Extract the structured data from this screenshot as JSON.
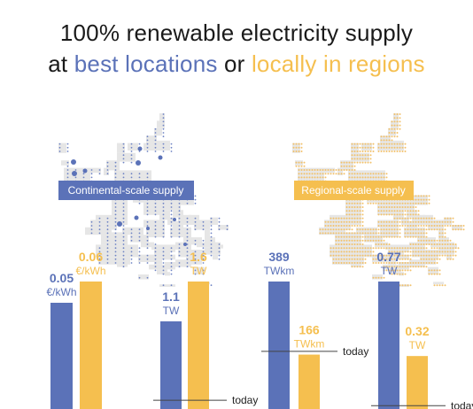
{
  "title": {
    "line1": "100% renewable electricity supply",
    "line2_prefix": "at ",
    "line2_blue": "best locations",
    "line2_middle": " or ",
    "line2_yellow": "locally in regions"
  },
  "maps": {
    "continental_label": "Continental-scale supply",
    "regional_label": "Regional-scale supply"
  },
  "colors": {
    "continental": "#5b72b8",
    "regional": "#f5bf4f",
    "map_land": "#e6e6e6",
    "reference_line": "#444444"
  },
  "chart_data": [
    {
      "type": "bar",
      "metric": "cost",
      "series": [
        {
          "name": "Continental-scale supply",
          "value": 0.05,
          "label": "0.05",
          "unit": "€/kWh"
        },
        {
          "name": "Regional-scale supply",
          "value": 0.06,
          "label": "0.06",
          "unit": "€/kWh"
        }
      ]
    },
    {
      "type": "bar",
      "metric": "capacity",
      "series": [
        {
          "name": "Continental-scale supply",
          "value": 1.1,
          "label": "1.1",
          "unit": "TW"
        },
        {
          "name": "Regional-scale supply",
          "value": 1.6,
          "label": "1.6",
          "unit": "TW"
        }
      ],
      "reference": {
        "label": "today",
        "value": 0.11
      }
    },
    {
      "type": "bar",
      "metric": "transmission",
      "series": [
        {
          "name": "Continental-scale supply",
          "value": 389,
          "label": "389",
          "unit": "TWkm"
        },
        {
          "name": "Regional-scale supply",
          "value": 166,
          "label": "166",
          "unit": "TWkm"
        }
      ],
      "reference": {
        "label": "today",
        "value": 176
      }
    },
    {
      "type": "bar",
      "metric": "storage",
      "series": [
        {
          "name": "Continental-scale supply",
          "value": 0.77,
          "label": "0.77",
          "unit": "TW"
        },
        {
          "name": "Regional-scale supply",
          "value": 0.32,
          "label": "0.32",
          "unit": "TW"
        }
      ],
      "reference": {
        "label": "today",
        "value": 0.02
      }
    }
  ]
}
